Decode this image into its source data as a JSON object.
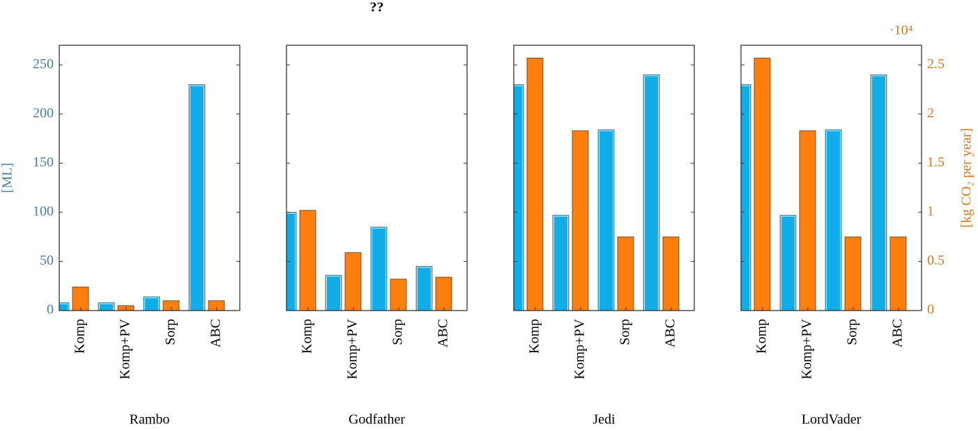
{
  "chart_data": [
    {
      "type": "bar",
      "xlabel": "Rambo",
      "ylabel": "[ML]",
      "ytick_labels": true,
      "categories": [
        "Komp",
        "Komp+PV",
        "Sorp",
        "ABC"
      ],
      "series": [
        {
          "color": "#12ade8",
          "values": [
            8,
            8,
            14,
            230
          ]
        },
        {
          "color": "#ff7f0e",
          "values": [
            0.24,
            0.05,
            0.1,
            0.1
          ],
          "axis": "y2"
        }
      ],
      "ylim": [
        0,
        270
      ],
      "yticks": [
        0,
        50,
        100,
        150,
        200,
        250
      ],
      "y2lim": [
        0,
        2.7
      ]
    },
    {
      "type": "bar",
      "title": "??",
      "xlabel": "Godfather",
      "ytick_labels": false,
      "categories": [
        "Komp",
        "Komp+PV",
        "Sorp",
        "ABC"
      ],
      "series": [
        {
          "color": "#12ade8",
          "values": [
            100,
            36,
            85,
            45
          ]
        },
        {
          "color": "#ff7f0e",
          "values": [
            1.02,
            0.59,
            0.32,
            0.34
          ],
          "axis": "y2"
        }
      ],
      "ylim": [
        0,
        270
      ],
      "yticks": [
        0,
        50,
        100,
        150,
        200,
        250
      ],
      "y2lim": [
        0,
        2.7
      ]
    },
    {
      "type": "bar",
      "xlabel": "Jedi",
      "ytick_labels": false,
      "categories": [
        "Komp",
        "Komp+PV",
        "Sorp",
        "ABC"
      ],
      "series": [
        {
          "color": "#12ade8",
          "values": [
            230,
            97,
            184,
            240
          ]
        },
        {
          "color": "#ff7f0e",
          "values": [
            2.57,
            1.83,
            0.75,
            0.75
          ],
          "axis": "y2"
        }
      ],
      "ylim": [
        0,
        270
      ],
      "yticks": [
        0,
        50,
        100,
        150,
        200,
        250
      ],
      "y2lim": [
        0,
        2.7
      ]
    },
    {
      "type": "bar",
      "xlabel": "LordVader",
      "ytick_labels": false,
      "categories": [
        "Komp",
        "Komp+PV",
        "Sorp",
        "ABC"
      ],
      "series": [
        {
          "color": "#12ade8",
          "values": [
            230,
            97,
            184,
            240
          ]
        },
        {
          "color": "#ff7f0e",
          "values": [
            2.57,
            1.83,
            0.75,
            0.75
          ],
          "axis": "y2"
        }
      ],
      "ylim": [
        0,
        270
      ],
      "yticks": [
        0,
        50,
        100,
        150,
        200,
        250
      ],
      "y2lim": [
        0,
        2.7
      ],
      "y2label": "[kg CO₂ per year]",
      "y2_scale_label": "·10⁴",
      "y2ticks": [
        0,
        0.5,
        1,
        1.5,
        2,
        2.5
      ]
    }
  ]
}
